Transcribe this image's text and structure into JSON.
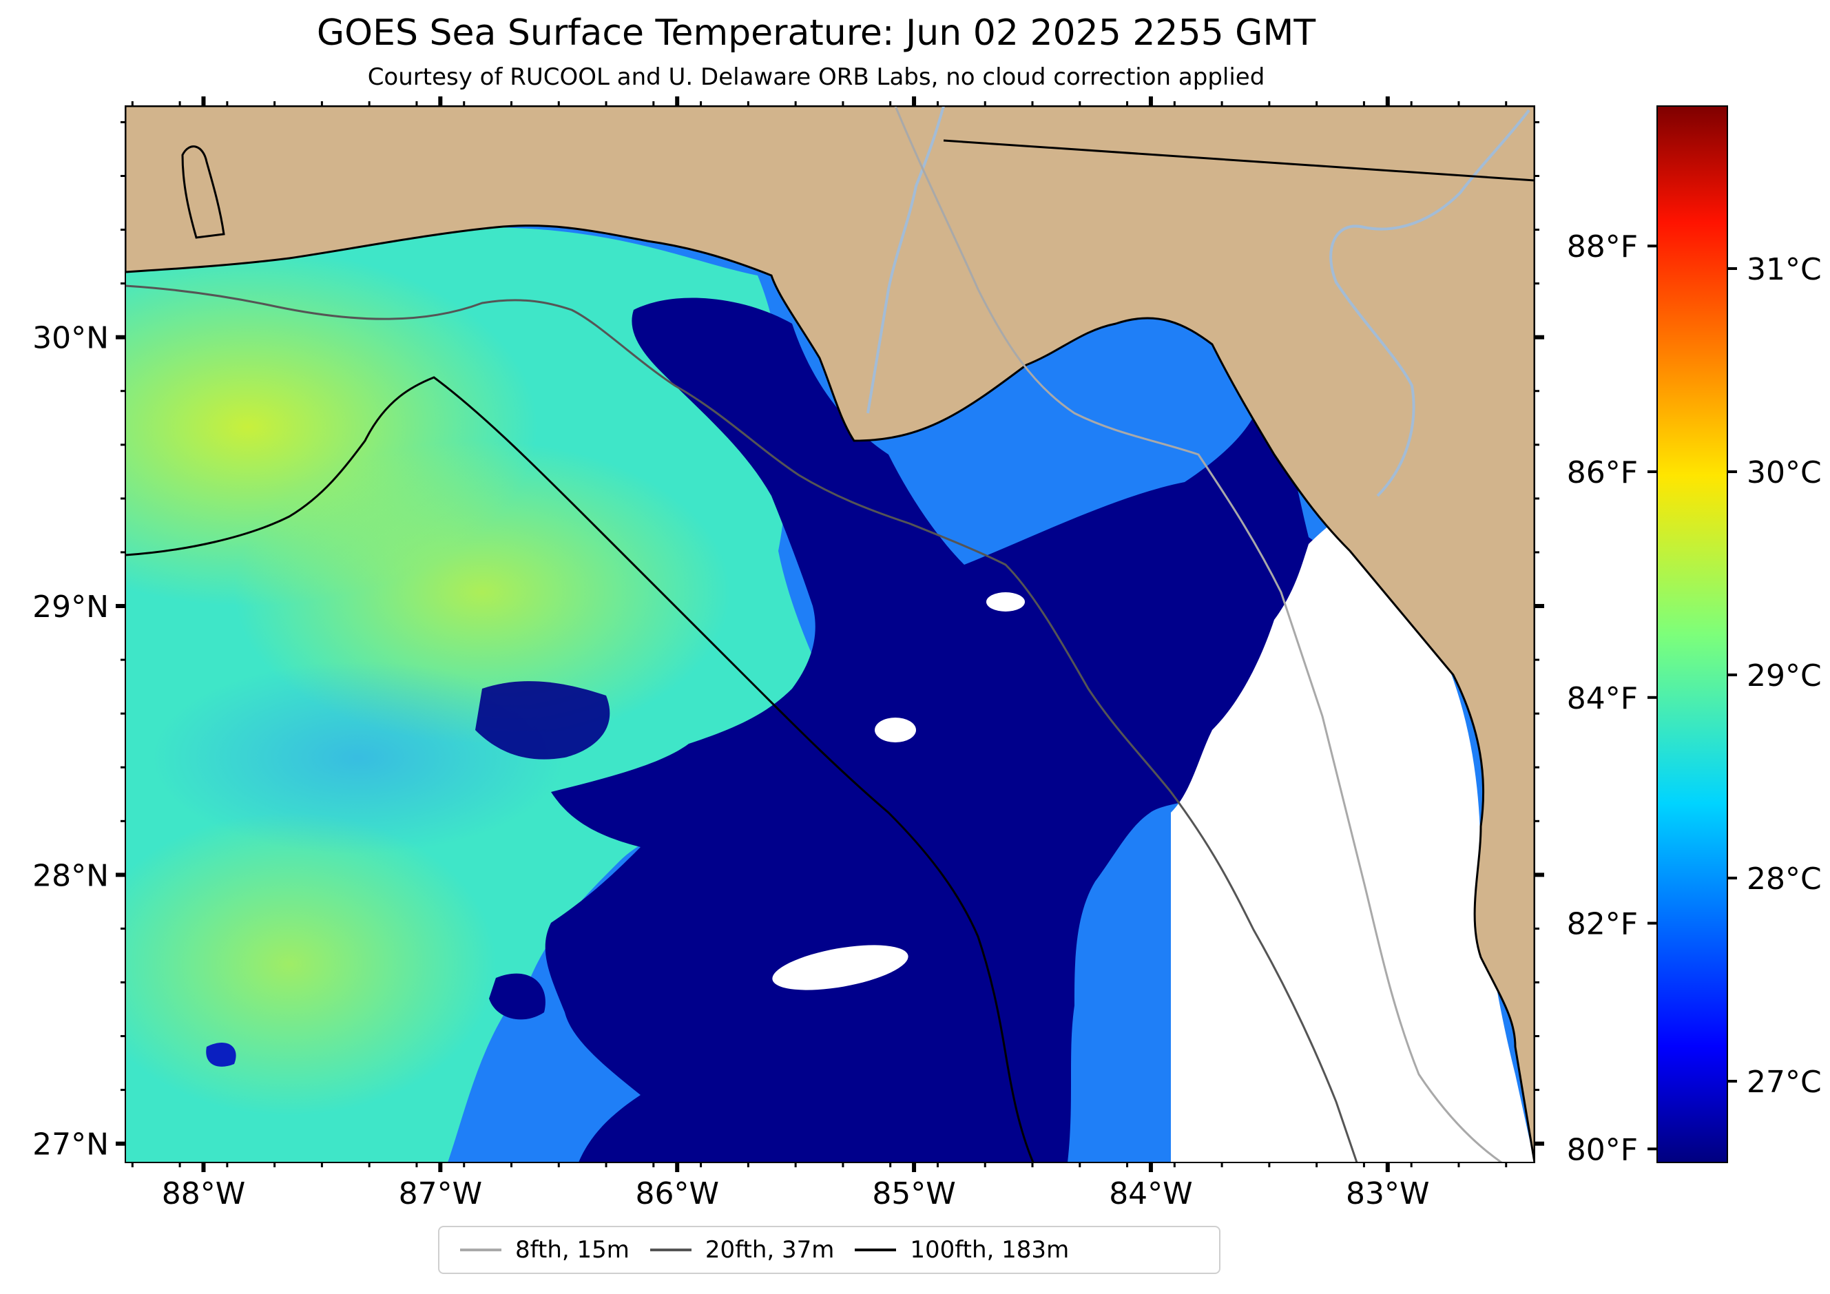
{
  "title": "GOES Sea Surface Temperature: Jun 02 2025 2255 GMT",
  "subtitle": "Courtesy of RUCOOL and U. Delaware ORB Labs, no cloud correction applied",
  "map": {
    "lon_range": [
      -88.33,
      -82.38
    ],
    "lat_range": [
      26.93,
      30.86
    ],
    "lon_ticks": [
      {
        "value": -88,
        "label": "88°W"
      },
      {
        "value": -87,
        "label": "87°W"
      },
      {
        "value": -86,
        "label": "86°W"
      },
      {
        "value": -85,
        "label": "85°W"
      },
      {
        "value": -84,
        "label": "84°W"
      },
      {
        "value": -83,
        "label": "83°W"
      }
    ],
    "lat_ticks": [
      {
        "value": 27,
        "label": "27°N"
      },
      {
        "value": 28,
        "label": "28°N"
      },
      {
        "value": 29,
        "label": "29°N"
      },
      {
        "value": 30,
        "label": "30°N"
      }
    ],
    "land_color": "#d2b48c",
    "no_data_color": "#ffffff"
  },
  "colorbar": {
    "colormap": "jet",
    "celsius_range": [
      26.6,
      31.8
    ],
    "celsius_ticks": [
      {
        "value": 27,
        "label": "27°C"
      },
      {
        "value": 28,
        "label": "28°C"
      },
      {
        "value": 29,
        "label": "29°C"
      },
      {
        "value": 30,
        "label": "30°C"
      },
      {
        "value": 31,
        "label": "31°C"
      }
    ],
    "fahrenheit_ticks": [
      {
        "value": 80,
        "label": "80°F"
      },
      {
        "value": 82,
        "label": "82°F"
      },
      {
        "value": 84,
        "label": "84°F"
      },
      {
        "value": 86,
        "label": "86°F"
      },
      {
        "value": 88,
        "label": "88°F"
      }
    ]
  },
  "legend": [
    {
      "label": "8fth, 15m",
      "color": "#a9a9a9"
    },
    {
      "label": "20fth, 37m",
      "color": "#555555"
    },
    {
      "label": "100fth, 183m",
      "color": "#000000"
    }
  ]
}
